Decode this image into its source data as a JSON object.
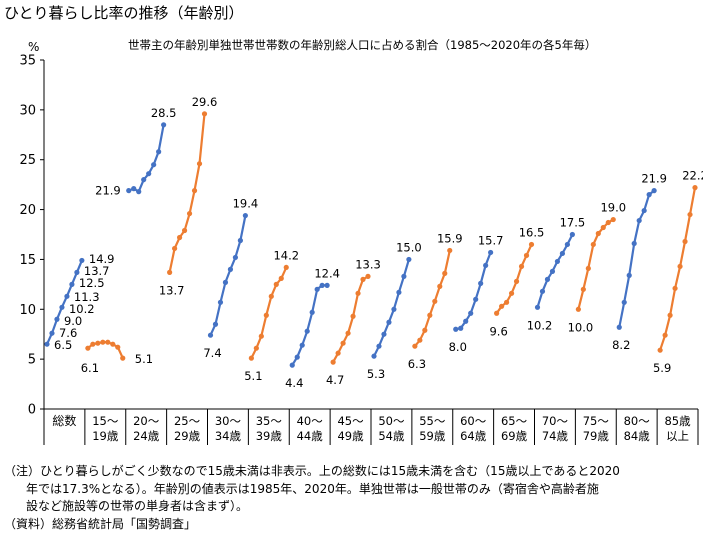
{
  "title": "ひとり暮らし比率の推移（年齢別）",
  "subtitle": "世帯主の年齢別単独世帯世帯数の年齢別総人口に占める割合（1985～2020年の各5年毎）",
  "unit": "%",
  "notes": [
    "（注）ひとり暮らしがごく少数なので15歳未満は非表示。上の総数には15歳未満を含む（15歳以上であると2020",
    "年では17.3%となる）。年齢別の値表示は1985年、2020年。単独世帯は一般世帯のみ（寄宿舎や高齢者施",
    "設など施設等の世帯の単身者は含まず）。",
    "（資料）総務省統計局「国勢調査」"
  ],
  "colors": {
    "blue": "#4472C4",
    "orange": "#ED7D31",
    "axis": "#000000",
    "grid": "#d9d9d9"
  },
  "chart_data": {
    "type": "line",
    "title": "世帯主の年齢別単独世帯世帯数の年齢別総人口に占める割合（1985～2020年の各5年毎）",
    "ylabel": "%",
    "ylim": [
      0,
      35
    ],
    "yticks": [
      0,
      5,
      10,
      15,
      20,
      25,
      30,
      35
    ],
    "grid": false,
    "x_within_group": [
      "1985",
      "1990",
      "1995",
      "2000",
      "2005",
      "2010",
      "2015",
      "2020"
    ],
    "groups": [
      {
        "label": "総数",
        "color": "blue",
        "values": [
          6.5,
          7.6,
          9.0,
          10.2,
          11.3,
          12.5,
          13.7,
          14.9
        ],
        "labels": [
          "6.5",
          "7.6",
          "9.0",
          "10.2",
          "11.3",
          "12.5",
          "13.7",
          "14.9"
        ]
      },
      {
        "label": "15～19歳",
        "color": "orange",
        "values": [
          6.1,
          6.5,
          6.6,
          6.7,
          6.7,
          6.5,
          6.2,
          5.1
        ],
        "labels": [
          "6.1",
          "5.1"
        ]
      },
      {
        "label": "20～24歳",
        "color": "blue",
        "values": [
          21.9,
          22.1,
          21.8,
          23.0,
          23.6,
          24.5,
          25.8,
          28.5
        ],
        "labels": [
          "21.9",
          "28.5"
        ]
      },
      {
        "label": "25～29歳",
        "color": "orange",
        "values": [
          13.7,
          16.1,
          17.2,
          17.9,
          19.6,
          21.9,
          24.6,
          29.6
        ],
        "labels": [
          "13.7",
          "29.6"
        ]
      },
      {
        "label": "30～34歳",
        "color": "blue",
        "values": [
          7.4,
          8.5,
          10.7,
          12.7,
          14.0,
          15.2,
          16.9,
          19.4
        ],
        "labels": [
          "7.4",
          "19.4"
        ]
      },
      {
        "label": "35～39歳",
        "color": "orange",
        "values": [
          5.1,
          6.1,
          7.3,
          9.4,
          11.3,
          12.5,
          13.1,
          14.2
        ],
        "labels": [
          "5.1",
          "14.2"
        ]
      },
      {
        "label": "40～44歳",
        "color": "blue",
        "values": [
          4.4,
          5.2,
          6.4,
          7.8,
          9.7,
          12.0,
          12.4,
          12.4
        ],
        "labels": [
          "4.4",
          "12.4"
        ]
      },
      {
        "label": "45～49歳",
        "color": "orange",
        "values": [
          4.7,
          5.6,
          6.6,
          7.6,
          9.3,
          11.6,
          13.0,
          13.3
        ],
        "labels": [
          "4.7",
          "13.3"
        ]
      },
      {
        "label": "50～54歳",
        "color": "blue",
        "values": [
          5.3,
          6.3,
          7.5,
          8.7,
          10.0,
          11.7,
          13.3,
          15.0
        ],
        "labels": [
          "5.3",
          "15.0"
        ]
      },
      {
        "label": "55～59歳",
        "color": "orange",
        "values": [
          6.3,
          6.9,
          7.9,
          9.4,
          10.8,
          12.3,
          13.6,
          15.9
        ],
        "labels": [
          "6.3",
          "15.9"
        ]
      },
      {
        "label": "60～64歳",
        "color": "blue",
        "values": [
          8.0,
          8.1,
          8.8,
          9.6,
          11.0,
          12.6,
          14.4,
          15.7
        ],
        "labels": [
          "8.0",
          "15.7"
        ]
      },
      {
        "label": "65～69歳",
        "color": "orange",
        "values": [
          9.6,
          10.3,
          10.7,
          11.6,
          12.8,
          14.3,
          15.4,
          16.5
        ],
        "labels": [
          "9.6",
          "16.5"
        ]
      },
      {
        "label": "70～74歳",
        "color": "blue",
        "values": [
          10.2,
          11.8,
          13.0,
          13.8,
          14.8,
          15.6,
          16.5,
          17.5
        ],
        "labels": [
          "10.2",
          "17.5"
        ]
      },
      {
        "label": "75～79歳",
        "color": "orange",
        "values": [
          10.0,
          12.0,
          14.1,
          16.5,
          17.6,
          18.2,
          18.7,
          19.0
        ],
        "labels": [
          "10.0",
          "19.0"
        ]
      },
      {
        "label": "80～84歳",
        "color": "blue",
        "values": [
          8.2,
          10.7,
          13.4,
          16.6,
          18.9,
          19.9,
          21.5,
          21.9
        ],
        "labels": [
          "8.2",
          "21.9"
        ]
      },
      {
        "label": "85歳以上",
        "color": "orange",
        "values": [
          5.9,
          7.4,
          9.4,
          12.1,
          14.3,
          16.8,
          19.5,
          22.2
        ],
        "labels": [
          "5.9",
          "22.2"
        ]
      }
    ]
  }
}
